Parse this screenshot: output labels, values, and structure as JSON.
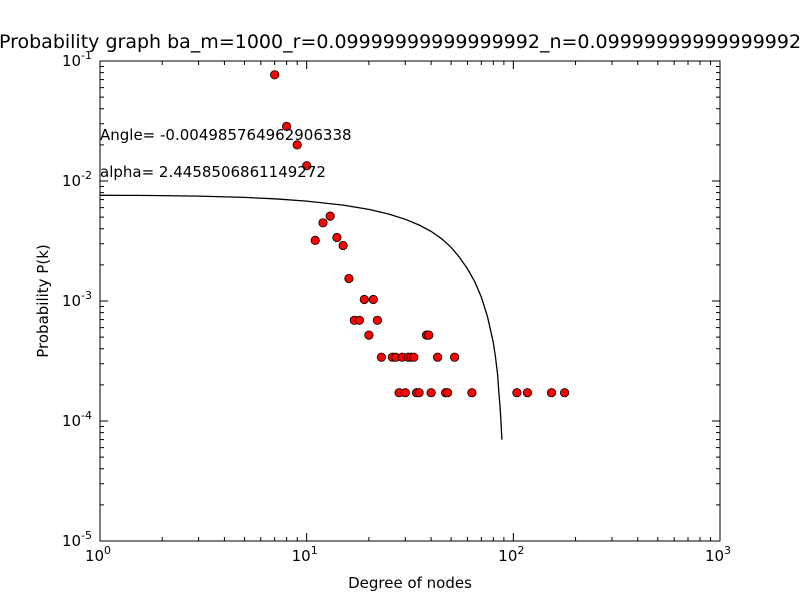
{
  "chart_data": {
    "type": "scatter",
    "title": "Probability graph ba_m=1000_r=0.09999999999999992_n=0.09999999999999992",
    "xlabel": "Degree of nodes",
    "ylabel": "Probability P(k)",
    "xscale": "log",
    "yscale": "log",
    "xlim": [
      1,
      1000
    ],
    "ylim": [
      1e-05,
      0.1
    ],
    "x_ticks": [
      {
        "base": "10",
        "exp": "0"
      },
      {
        "base": "10",
        "exp": "1"
      },
      {
        "base": "10",
        "exp": "2"
      },
      {
        "base": "10",
        "exp": "3"
      }
    ],
    "y_ticks": [
      {
        "base": "10",
        "exp": "-5"
      },
      {
        "base": "10",
        "exp": "-4"
      },
      {
        "base": "10",
        "exp": "-3"
      },
      {
        "base": "10",
        "exp": "-2"
      },
      {
        "base": "10",
        "exp": "-1"
      }
    ],
    "annotations": [
      "Angle= -0.004985764962906338",
      "alpha= 2.4458506861149272"
    ],
    "grid": false,
    "series": [
      {
        "kind": "scatter",
        "color": "#ff0000",
        "edge_color": "#000000",
        "points": [
          [
            7,
            0.0767
          ],
          [
            8,
            0.0285
          ],
          [
            9,
            0.02
          ],
          [
            10,
            0.0134
          ],
          [
            11,
            0.0032
          ],
          [
            12,
            0.00448
          ],
          [
            13,
            0.0051
          ],
          [
            14,
            0.00338
          ],
          [
            15,
            0.0029
          ],
          [
            16,
            0.00154
          ],
          [
            17,
            0.00069
          ],
          [
            18,
            0.00069
          ],
          [
            19,
            0.00103
          ],
          [
            20,
            0.00052
          ],
          [
            21,
            0.00103
          ],
          [
            22,
            0.00069
          ],
          [
            23,
            0.00034
          ],
          [
            26,
            0.00034
          ],
          [
            27,
            0.00034
          ],
          [
            28,
            0.000172
          ],
          [
            29,
            0.00034
          ],
          [
            30,
            0.000172
          ],
          [
            31,
            0.00034
          ],
          [
            32,
            0.00034
          ],
          [
            33,
            0.00034
          ],
          [
            34,
            0.000172
          ],
          [
            35,
            0.000172
          ],
          [
            38,
            0.00052
          ],
          [
            39,
            0.00052
          ],
          [
            40,
            0.000172
          ],
          [
            43,
            0.00034
          ],
          [
            47,
            0.000172
          ],
          [
            48,
            0.000172
          ],
          [
            52,
            0.00034
          ],
          [
            63,
            0.000172
          ],
          [
            104,
            0.000172
          ],
          [
            117,
            0.000172
          ],
          [
            153,
            0.000172
          ],
          [
            177,
            0.000172
          ]
        ]
      },
      {
        "kind": "line",
        "color": "#000000",
        "points": [
          [
            1,
            0.0076
          ],
          [
            1.5,
            0.00759
          ],
          [
            2,
            0.00755
          ],
          [
            3,
            0.00748
          ],
          [
            5,
            0.0073
          ],
          [
            7,
            0.0071
          ],
          [
            10,
            0.0068
          ],
          [
            15,
            0.0063
          ],
          [
            20,
            0.0058
          ],
          [
            25,
            0.0053
          ],
          [
            30,
            0.0048
          ],
          [
            35,
            0.0043
          ],
          [
            40,
            0.0038
          ],
          [
            45,
            0.0033
          ],
          [
            50,
            0.0028
          ],
          [
            55,
            0.0023
          ],
          [
            60,
            0.00185
          ],
          [
            65,
            0.00145
          ],
          [
            70,
            0.00108
          ],
          [
            75,
            0.00074
          ],
          [
            78,
            0.00055
          ],
          [
            80,
            0.00045
          ],
          [
            82,
            0.00034
          ],
          [
            84,
            0.00024
          ],
          [
            85,
            0.00018
          ],
          [
            86,
            0.00014
          ],
          [
            87,
            0.000105
          ],
          [
            88,
            7e-05
          ]
        ]
      }
    ]
  }
}
